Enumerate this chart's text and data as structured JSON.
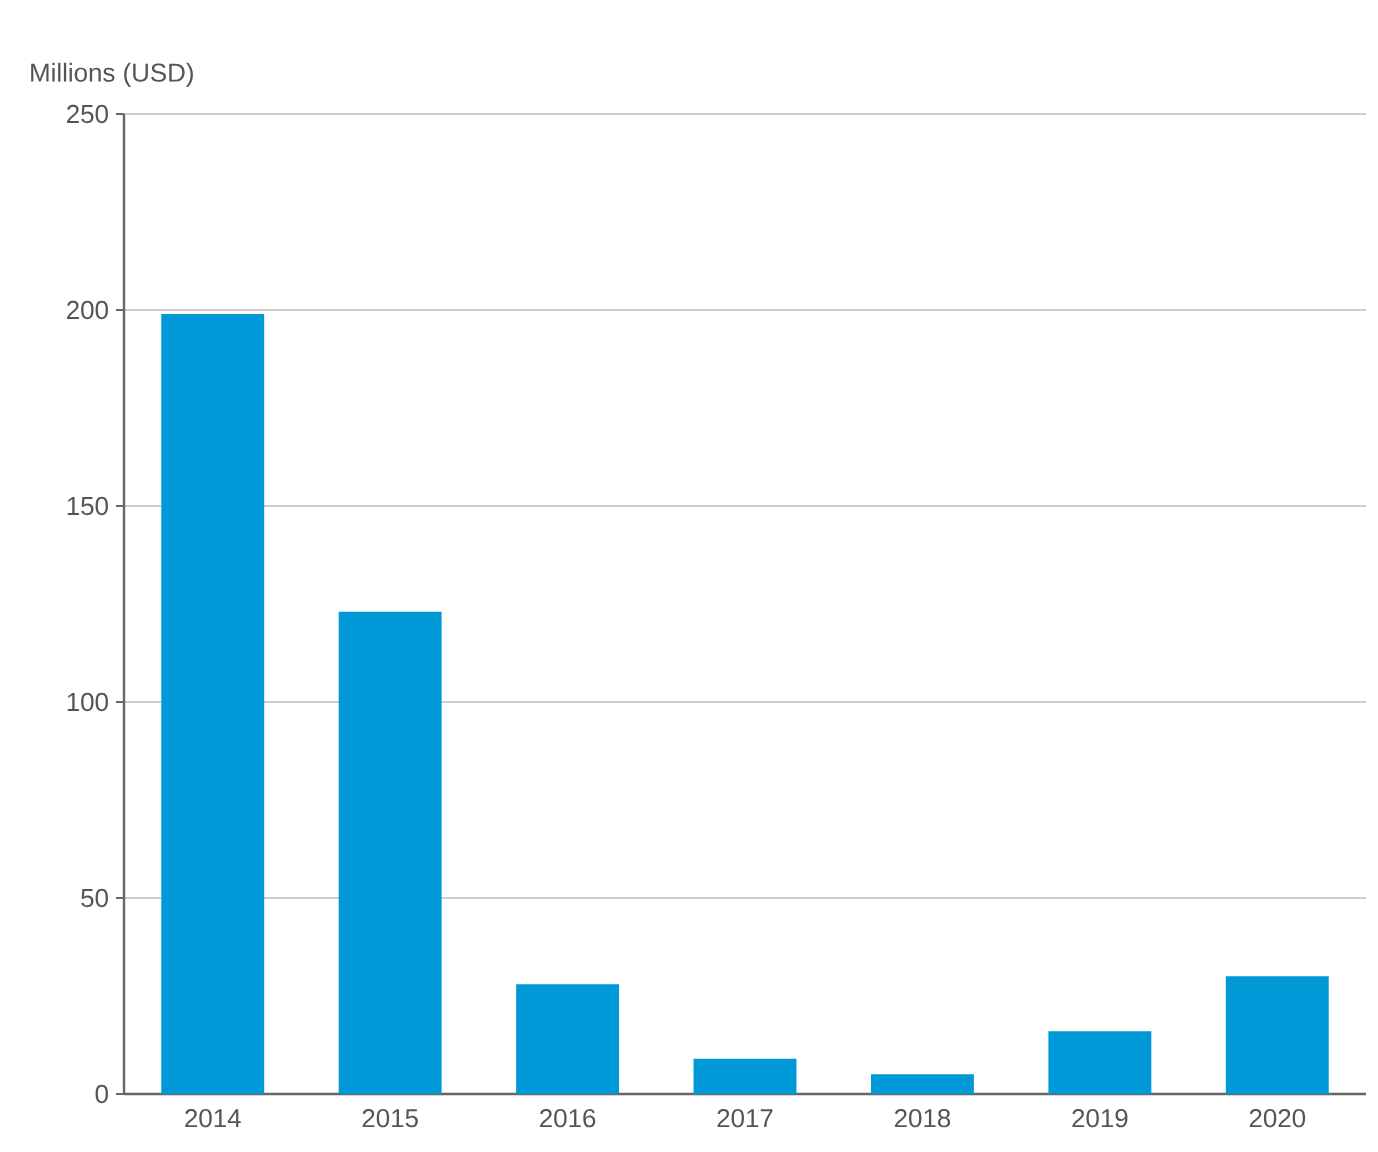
{
  "chart_data": {
    "type": "bar",
    "ylabel": "Millions (USD)",
    "categories": [
      "2014",
      "2015",
      "2016",
      "2017",
      "2018",
      "2019",
      "2020"
    ],
    "values": [
      199,
      123,
      28,
      9,
      5,
      16,
      30
    ],
    "color": "#0099d8",
    "ylim": [
      0,
      250
    ],
    "yticks": [
      0,
      50,
      100,
      150,
      200,
      250
    ],
    "grid": "y"
  }
}
